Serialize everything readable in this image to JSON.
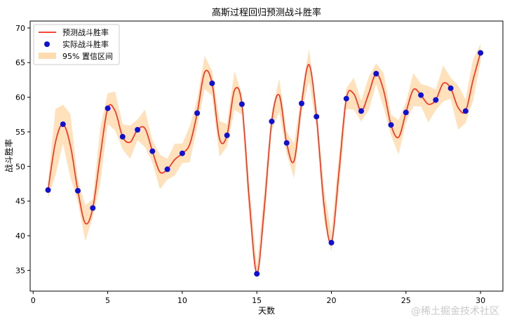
{
  "chart_data": {
    "type": "line",
    "title": "高斯过程回归预测战斗胜率",
    "xlabel": "天数",
    "ylabel": "战斗胜率",
    "xlim": [
      -0.2,
      31.5
    ],
    "ylim": [
      32,
      71
    ],
    "xticks": [
      0,
      5,
      10,
      15,
      20,
      25,
      30
    ],
    "yticks": [
      35,
      40,
      45,
      50,
      55,
      60,
      65,
      70
    ],
    "grid": false,
    "legend_position": "top-left",
    "legend": {
      "prediction": "预测战斗胜率",
      "actual": "实际战斗胜率",
      "interval": "95% 置信区间"
    },
    "colors": {
      "prediction": "#ff2a1a",
      "actual": "#1010d0",
      "interval": "#ffdcb0"
    },
    "actual_points": {
      "x": [
        1,
        2,
        3,
        4,
        5,
        6,
        7,
        8,
        9,
        10,
        11,
        12,
        13,
        14,
        15,
        16,
        17,
        18,
        19,
        20,
        21,
        22,
        23,
        24,
        25,
        26,
        27,
        28,
        29,
        30
      ],
      "y": [
        46.6,
        56.1,
        46.5,
        44.0,
        58.4,
        54.3,
        55.3,
        52.2,
        49.6,
        51.9,
        57.7,
        62.0,
        54.5,
        59.0,
        34.5,
        56.5,
        53.4,
        59.1,
        57.2,
        39.0,
        59.8,
        58.0,
        63.4,
        56.0,
        57.8,
        60.3,
        59.6,
        61.3,
        58.0,
        66.4
      ]
    },
    "prediction": {
      "x": [
        1,
        1.5,
        2,
        2.5,
        3,
        3.5,
        4,
        4.5,
        5,
        5.5,
        6,
        6.5,
        7,
        7.5,
        8,
        8.5,
        9,
        9.5,
        10,
        10.5,
        11,
        11.5,
        12,
        12.5,
        13,
        13.5,
        14,
        14.5,
        15,
        15.5,
        16,
        16.5,
        17,
        17.5,
        18,
        18.5,
        19,
        19.5,
        20,
        20.5,
        21,
        21.5,
        22,
        22.5,
        23,
        23.5,
        24,
        24.5,
        25,
        25.5,
        26,
        26.5,
        27,
        27.5,
        28,
        28.5,
        29,
        29.5,
        30
      ],
      "y": [
        46.6,
        53.5,
        56.1,
        53.0,
        46.5,
        41.8,
        44.0,
        51.5,
        58.4,
        58.0,
        54.3,
        53.5,
        55.3,
        55.5,
        52.2,
        49.2,
        49.6,
        51.0,
        51.9,
        53.2,
        57.7,
        63.6,
        62.0,
        54.0,
        54.5,
        61.0,
        59.0,
        45.0,
        34.5,
        44.0,
        56.5,
        60.3,
        53.4,
        50.8,
        59.1,
        64.7,
        57.2,
        44.5,
        39.0,
        49.0,
        59.8,
        60.5,
        58.0,
        60.5,
        63.4,
        61.0,
        56.0,
        54.2,
        57.8,
        61.1,
        60.3,
        59.0,
        59.6,
        62.0,
        61.3,
        58.5,
        58.0,
        62.5,
        66.4
      ],
      "band": [
        1.2,
        4.8,
        2.8,
        4.6,
        1.6,
        2.6,
        1.3,
        4.0,
        2.2,
        2.8,
        1.8,
        2.4,
        1.5,
        2.7,
        1.6,
        2.5,
        1.5,
        2.3,
        1.4,
        2.6,
        2.0,
        2.4,
        1.8,
        2.6,
        1.6,
        2.8,
        1.5,
        2.3,
        1.0,
        2.3,
        1.3,
        2.4,
        1.6,
        2.5,
        1.4,
        2.3,
        1.5,
        2.4,
        1.3,
        2.5,
        1.5,
        2.3,
        1.5,
        2.4,
        1.5,
        2.5,
        1.5,
        2.5,
        1.5,
        2.4,
        1.6,
        2.6,
        1.5,
        2.6,
        1.5,
        3.2,
        1.7,
        3.0,
        1.3
      ]
    }
  },
  "watermark": "@稀土掘金技术社区"
}
